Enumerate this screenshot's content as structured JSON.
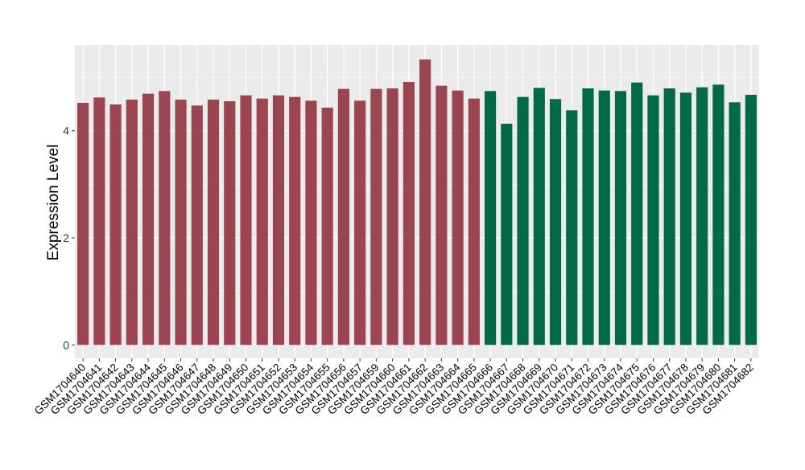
{
  "chart_data": {
    "type": "bar",
    "ylabel": "Expression Level",
    "xlabel": "",
    "title": "",
    "ylim": [
      -0.25,
      5.6
    ],
    "yticks": [
      0,
      2,
      4
    ],
    "grid": true,
    "categories": [
      "GSM1704640",
      "GSM1704641",
      "GSM1704642",
      "GSM1704643",
      "GSM1704644",
      "GSM1704645",
      "GSM1704646",
      "GSM1704647",
      "GSM1704648",
      "GSM1704649",
      "GSM1704650",
      "GSM1704651",
      "GSM1704652",
      "GSM1704653",
      "GSM1704654",
      "GSM1704655",
      "GSM1704656",
      "GSM1704657",
      "GSM1704659",
      "GSM1704660",
      "GSM1704661",
      "GSM1704662",
      "GSM1704663",
      "GSM1704664",
      "GSM1704665",
      "GSM1704666",
      "GSM1704667",
      "GSM1704668",
      "GSM1704669",
      "GSM1704670",
      "GSM1704671",
      "GSM1704672",
      "GSM1704673",
      "GSM1704674",
      "GSM1704675",
      "GSM1704676",
      "GSM1704677",
      "GSM1704678",
      "GSM1704679",
      "GSM1704680",
      "GSM1704681",
      "GSM1704682"
    ],
    "values": [
      4.52,
      4.62,
      4.49,
      4.58,
      4.69,
      4.74,
      4.58,
      4.47,
      4.58,
      4.55,
      4.66,
      4.6,
      4.66,
      4.63,
      4.56,
      4.43,
      4.78,
      4.56,
      4.78,
      4.79,
      4.91,
      5.33,
      4.84,
      4.75,
      4.6,
      4.74,
      4.13,
      4.63,
      4.8,
      4.59,
      4.38,
      4.79,
      4.75,
      4.74,
      4.9,
      4.66,
      4.79,
      4.71,
      4.81,
      4.86,
      4.53,
      4.67
    ],
    "colors": [
      "#9b4551",
      "#9b4551",
      "#9b4551",
      "#9b4551",
      "#9b4551",
      "#9b4551",
      "#9b4551",
      "#9b4551",
      "#9b4551",
      "#9b4551",
      "#9b4551",
      "#9b4551",
      "#9b4551",
      "#9b4551",
      "#9b4551",
      "#9b4551",
      "#9b4551",
      "#9b4551",
      "#9b4551",
      "#9b4551",
      "#9b4551",
      "#9b4551",
      "#9b4551",
      "#9b4551",
      "#9b4551",
      "#006946",
      "#006946",
      "#006946",
      "#006946",
      "#006946",
      "#006946",
      "#006946",
      "#006946",
      "#006946",
      "#006946",
      "#006946",
      "#006946",
      "#006946",
      "#006946",
      "#006946",
      "#006946",
      "#006946"
    ],
    "panel_background": "#ebebeb",
    "grid_color": "#ffffff"
  }
}
